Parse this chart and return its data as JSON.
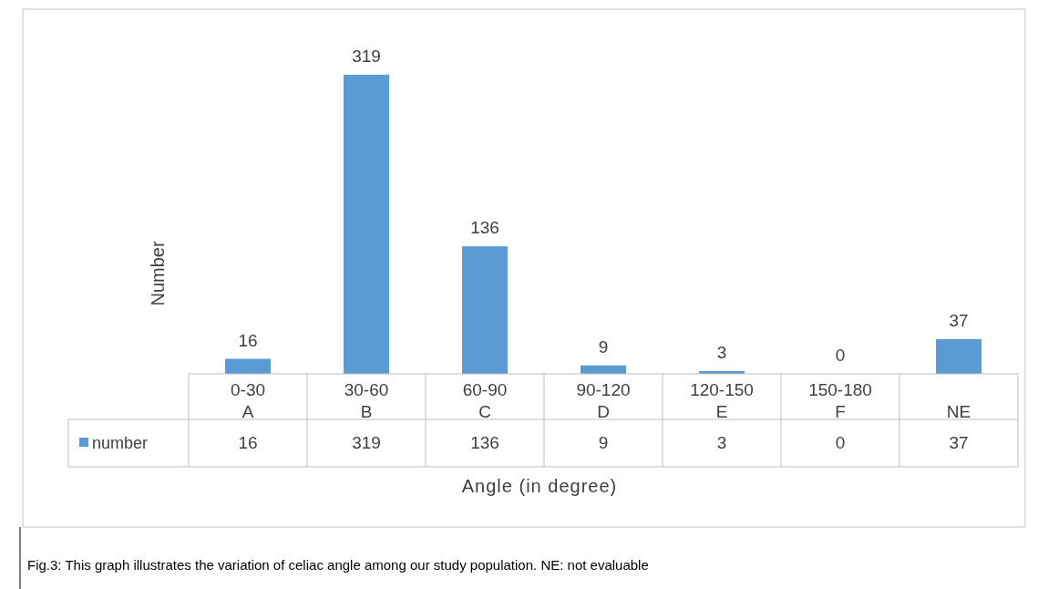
{
  "chart_data": {
    "type": "bar",
    "xlabel": "Angle (in degree)",
    "ylabel": "Number",
    "categories": [
      "0-30\nA",
      "30-60\nB",
      "60-90\nC",
      "90-120\nD",
      "120-150\nE",
      "150-180\nF",
      "NE"
    ],
    "series": [
      {
        "name": "number",
        "color": "#5b9bd5",
        "values": [
          16,
          319,
          136,
          9,
          3,
          0,
          37
        ],
        "value_labels": [
          "16",
          "319",
          "136",
          "9",
          "3",
          "0",
          "37"
        ]
      }
    ],
    "legend": "bottom",
    "annotations": [
      "16",
      "319",
      "136",
      "9",
      "3",
      "0",
      "37",
      "Fig.3: This graph illustrates the variation of celiac angle among our study population.   NE: not evaluable"
    ]
  }
}
